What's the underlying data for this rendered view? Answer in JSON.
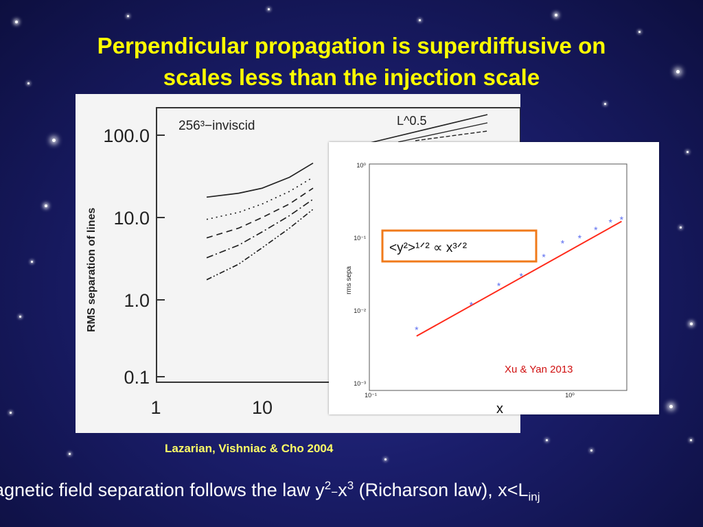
{
  "slide": {
    "title_line1": "Perpendicular propagation is superdiffusive on",
    "title_line2": "scales less than the injection scale",
    "caption_left": "Lazarian, Vishniac & Cho 2004",
    "bottom": {
      "text1": "agnetic field separation follows the law y",
      "sup1": "2",
      "sep": "−",
      "text2": "x",
      "sup2": "3",
      "text3": " (Richarson law), x<L",
      "sub": "inj"
    },
    "colors": {
      "title": "#ffff00",
      "caption": "#ffff66",
      "fit_line": "#ff2a1a",
      "box": "#f07a1a",
      "points": "#5a6cf0"
    }
  },
  "chart_data": [
    {
      "type": "line",
      "annotation": "256³−inviscid",
      "ref_label": "L^0.5",
      "ylabel": "RMS separation of lines",
      "y_scale": "log",
      "x_scale": "log",
      "y_ticks": [
        "100.0",
        "10.0",
        "1.0",
        "0.1"
      ],
      "x_ticks": [
        "1",
        "10"
      ],
      "series": [
        {
          "x": [
            3,
            6,
            10,
            18,
            30
          ],
          "y": [
            17,
            19,
            22,
            30,
            45
          ]
        },
        {
          "x": [
            3,
            6,
            10,
            18,
            30
          ],
          "y": [
            9,
            11,
            14,
            20,
            30
          ]
        },
        {
          "x": [
            3,
            6,
            10,
            18,
            30
          ],
          "y": [
            5.3,
            7,
            9.5,
            14,
            22
          ]
        },
        {
          "x": [
            3,
            6,
            10,
            18,
            30
          ],
          "y": [
            3,
            4.3,
            6.3,
            10,
            16
          ]
        },
        {
          "x": [
            3,
            6,
            10,
            18,
            30
          ],
          "y": [
            1.6,
            2.5,
            4,
            7,
            12
          ]
        }
      ]
    },
    {
      "type": "scatter",
      "ylabel": "rms sepa",
      "xlabel": "x",
      "x_scale": "log",
      "y_scale": "log",
      "x_ticks": [
        "10⁻¹",
        "10⁰"
      ],
      "y_ticks": [
        "10⁰",
        "10⁻¹",
        "10⁻²",
        "10⁻³"
      ],
      "xlim": [
        0.1,
        2
      ],
      "ylim": [
        0.001,
        1
      ],
      "formula": "<y²>¹ᐟ² ∝ x³ᐟ²",
      "source": "Xu & Yan 2013",
      "points": {
        "x": [
          0.17,
          0.32,
          0.44,
          0.57,
          0.74,
          0.92,
          1.12,
          1.35,
          1.6,
          1.82
        ],
        "y": [
          0.0055,
          0.012,
          0.022,
          0.03,
          0.055,
          0.085,
          0.1,
          0.13,
          0.165,
          0.18
        ]
      },
      "fit": {
        "x": [
          0.17,
          1.82
        ],
        "y": [
          0.0045,
          0.17
        ]
      }
    }
  ]
}
